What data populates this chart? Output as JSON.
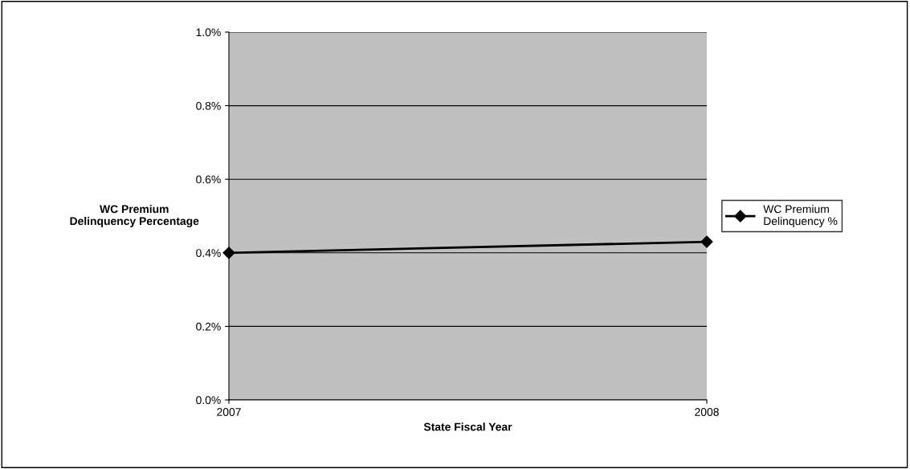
{
  "chart_data": {
    "type": "line",
    "xlabel": "State Fiscal Year",
    "ylabel": "WC Premium\nDelinquency Percentage",
    "x": [
      2007,
      2008
    ],
    "series": [
      {
        "name": "WC Premium\nDelinquency %",
        "color": "#000000",
        "values": [
          0.4,
          0.43
        ]
      }
    ],
    "xlim": [
      2007,
      2008
    ],
    "xticks": [
      2007,
      2008
    ],
    "ylim": [
      0,
      1.0
    ],
    "yticks": [
      {
        "value": 0,
        "label": "0.0%"
      },
      {
        "value": 0.2,
        "label": "0.2%"
      },
      {
        "value": 0.4,
        "label": "0.4%"
      },
      {
        "value": 0.6,
        "label": "0.6%"
      },
      {
        "value": 0.8,
        "label": "0.8%"
      },
      {
        "value": 1.0,
        "label": "1.0%"
      }
    ],
    "grid": "y",
    "legend": "right",
    "marker": "diamond",
    "line_style": "solid"
  }
}
